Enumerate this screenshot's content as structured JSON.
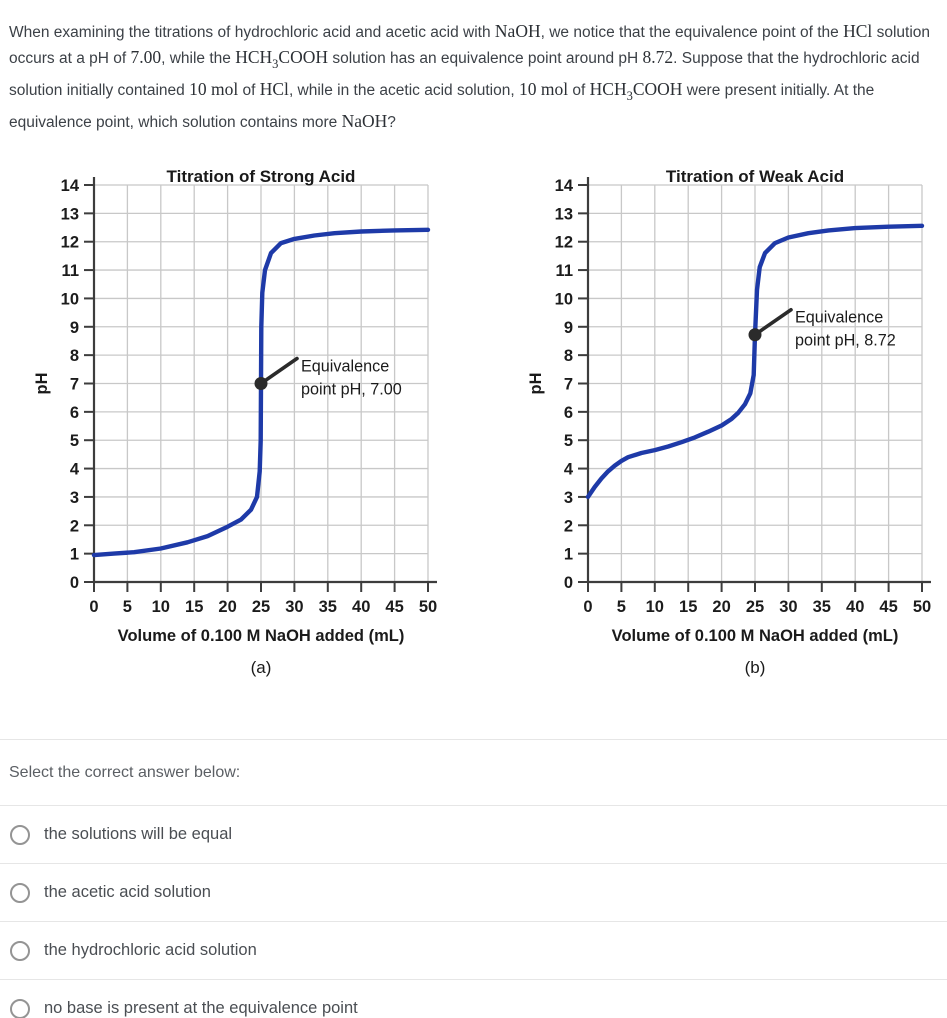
{
  "question": {
    "segments": [
      {
        "t": "text",
        "s": "When examining the titrations of hydrochloric acid and acetic acid with "
      },
      {
        "t": "math",
        "s": "NaOH"
      },
      {
        "t": "text",
        "s": ", we notice that the equivalence point of the "
      },
      {
        "t": "math",
        "s": "HCl"
      },
      {
        "t": "text",
        "s": " solution occurs at a pH of "
      },
      {
        "t": "math",
        "s": "7.00"
      },
      {
        "t": "text",
        "s": ", while the "
      },
      {
        "t": "math",
        "s": "HCH"
      },
      {
        "t": "sub",
        "s": "3"
      },
      {
        "t": "math",
        "s": "COOH"
      },
      {
        "t": "text",
        "s": " solution has an equivalence point around pH "
      },
      {
        "t": "math",
        "s": "8.72"
      },
      {
        "t": "text",
        "s": ". Suppose that the hydrochloric acid solution initially contained "
      },
      {
        "t": "math",
        "s": "10 mol"
      },
      {
        "t": "text",
        "s": " of "
      },
      {
        "t": "math",
        "s": "HCl"
      },
      {
        "t": "text",
        "s": ", while in the acetic acid solution, "
      },
      {
        "t": "math",
        "s": "10 mol"
      },
      {
        "t": "text",
        "s": " of "
      },
      {
        "t": "math",
        "s": "HCH"
      },
      {
        "t": "sub",
        "s": "3"
      },
      {
        "t": "math",
        "s": "COOH"
      },
      {
        "t": "text",
        "s": " were present initially. At the equivalence point, which solution contains more "
      },
      {
        "t": "math",
        "s": "NaOH"
      },
      {
        "t": "text",
        "s": "?"
      }
    ]
  },
  "chart_data": [
    {
      "type": "line",
      "title": "Titration of Strong Acid",
      "xlabel": "Volume of 0.100 M NaOH added (mL)",
      "ylabel": "pH",
      "caption": "(a)",
      "xlim": [
        0,
        50
      ],
      "ylim": [
        0,
        14
      ],
      "xtick_step": 5,
      "ytick_step": 1,
      "grid": true,
      "line_color": "#1e3aa8",
      "equivalence_point": {
        "volume_mL": 25,
        "pH": 7.0
      },
      "annotation_lines": [
        "Equivalence",
        "point pH, 7.00"
      ],
      "points": [
        [
          0,
          0.95
        ],
        [
          3,
          1.0
        ],
        [
          6,
          1.05
        ],
        [
          10,
          1.18
        ],
        [
          14,
          1.4
        ],
        [
          17,
          1.62
        ],
        [
          20,
          1.95
        ],
        [
          22,
          2.2
        ],
        [
          23.5,
          2.55
        ],
        [
          24.4,
          3.0
        ],
        [
          24.8,
          3.9
        ],
        [
          24.95,
          5.0
        ],
        [
          25,
          7.0
        ],
        [
          25.05,
          9.0
        ],
        [
          25.2,
          10.2
        ],
        [
          25.6,
          11.0
        ],
        [
          26.5,
          11.6
        ],
        [
          28,
          11.95
        ],
        [
          30,
          12.1
        ],
        [
          33,
          12.22
        ],
        [
          36,
          12.3
        ],
        [
          40,
          12.36
        ],
        [
          45,
          12.4
        ],
        [
          50,
          12.42
        ]
      ]
    },
    {
      "type": "line",
      "title": "Titration of Weak Acid",
      "xlabel": "Volume of 0.100 M NaOH added (mL)",
      "ylabel": "pH",
      "caption": "(b)",
      "xlim": [
        0,
        50
      ],
      "ylim": [
        0,
        14
      ],
      "xtick_step": 5,
      "ytick_step": 1,
      "grid": true,
      "line_color": "#1e3aa8",
      "equivalence_point": {
        "volume_mL": 25,
        "pH": 8.72
      },
      "annotation_lines": [
        "Equivalence",
        "point pH, 8.72"
      ],
      "points": [
        [
          0,
          3.0
        ],
        [
          1,
          3.35
        ],
        [
          2,
          3.65
        ],
        [
          3,
          3.9
        ],
        [
          4,
          4.1
        ],
        [
          5,
          4.27
        ],
        [
          6,
          4.4
        ],
        [
          8,
          4.55
        ],
        [
          10,
          4.65
        ],
        [
          12,
          4.78
        ],
        [
          14,
          4.93
        ],
        [
          16,
          5.1
        ],
        [
          18,
          5.3
        ],
        [
          20,
          5.52
        ],
        [
          21.5,
          5.75
        ],
        [
          22.5,
          5.97
        ],
        [
          23.5,
          6.27
        ],
        [
          24.3,
          6.65
        ],
        [
          24.8,
          7.3
        ],
        [
          25,
          8.72
        ],
        [
          25.3,
          10.3
        ],
        [
          25.7,
          11.1
        ],
        [
          26.5,
          11.6
        ],
        [
          28,
          11.95
        ],
        [
          30,
          12.15
        ],
        [
          33,
          12.3
        ],
        [
          36,
          12.4
        ],
        [
          40,
          12.48
        ],
        [
          45,
          12.53
        ],
        [
          50,
          12.56
        ]
      ]
    }
  ],
  "answers": {
    "prompt": "Select the correct answer below:",
    "options": [
      "the solutions will be equal",
      "the acetic acid solution",
      "the hydrochloric acid solution",
      "no base is present at the equivalence point"
    ]
  },
  "colors": {
    "curve_blue": "#1e3aa8",
    "axis": "#3d3d3d",
    "grid": "#c8c8c8",
    "annotation": "#2b2b2b",
    "divider": "#e6e6e6"
  }
}
